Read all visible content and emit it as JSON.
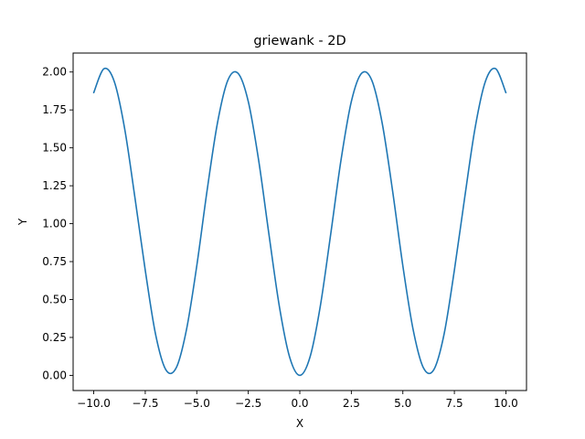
{
  "chart_data": {
    "type": "line",
    "title": "griewank - 2D",
    "xlabel": "X",
    "ylabel": "Y",
    "xlim": [
      -11.0,
      11.0
    ],
    "ylim": [
      -0.1,
      2.125
    ],
    "xticks": [
      -10.0,
      -7.5,
      -5.0,
      -2.5,
      0.0,
      2.5,
      5.0,
      7.5,
      10.0
    ],
    "xtick_labels": [
      "−10.0",
      "−7.5",
      "−5.0",
      "−2.5",
      "0.0",
      "2.5",
      "5.0",
      "7.5",
      "10.0"
    ],
    "yticks": [
      0.0,
      0.25,
      0.5,
      0.75,
      1.0,
      1.25,
      1.5,
      1.75,
      2.0
    ],
    "ytick_labels": [
      "0.00",
      "0.25",
      "0.50",
      "0.75",
      "1.00",
      "1.25",
      "1.50",
      "1.75",
      "2.00"
    ],
    "grid": false,
    "series": [
      {
        "color": "#1f77b4",
        "x": [
          -10.0,
          -9.5,
          -9.0,
          -8.5,
          -8.0,
          -7.5,
          -7.0,
          -6.5,
          -6.0,
          -5.5,
          -5.0,
          -4.5,
          -4.0,
          -3.5,
          -3.0,
          -2.5,
          -2.0,
          -1.5,
          -1.0,
          -0.5,
          0.0,
          0.5,
          1.0,
          1.5,
          2.0,
          2.5,
          3.0,
          3.5,
          4.0,
          4.5,
          5.0,
          5.5,
          6.0,
          6.5,
          7.0,
          7.5,
          8.0,
          8.5,
          9.0,
          9.5,
          10.0
        ],
        "y": [
          1.864,
          2.022,
          1.936,
          1.627,
          1.171,
          0.693,
          0.271,
          0.037,
          0.049,
          0.301,
          0.722,
          1.218,
          1.661,
          1.943,
          1.992,
          1.805,
          1.42,
          0.932,
          0.461,
          0.123,
          0.0,
          0.123,
          0.461,
          0.932,
          1.42,
          1.805,
          1.992,
          1.943,
          1.661,
          1.218,
          0.722,
          0.301,
          0.049,
          0.037,
          0.271,
          0.693,
          1.171,
          1.627,
          1.936,
          2.022,
          1.864
        ]
      }
    ]
  }
}
